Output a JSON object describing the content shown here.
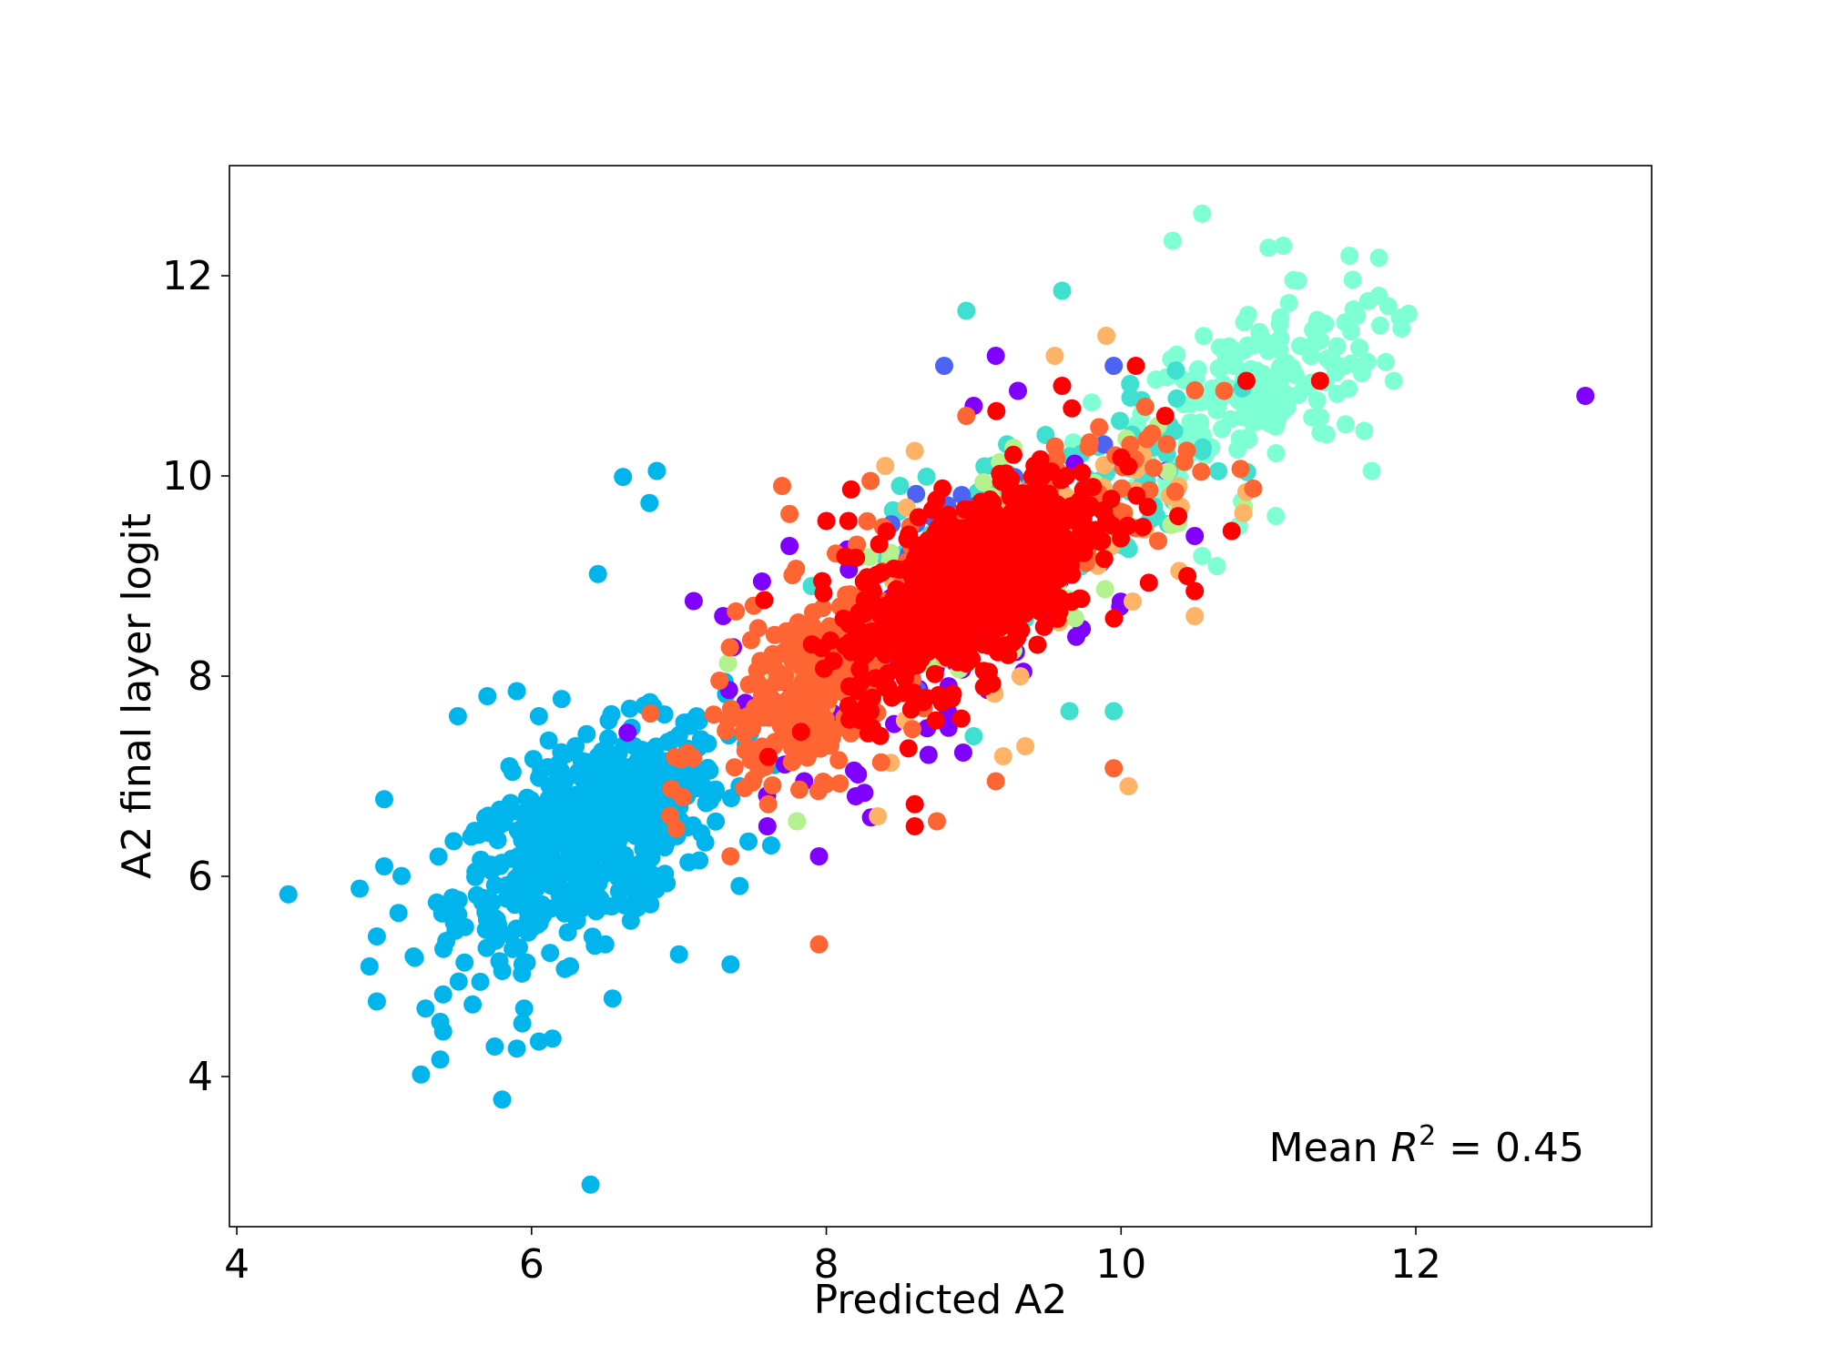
{
  "chart_data": {
    "type": "scatter",
    "title": "",
    "xlabel": "Predicted A2",
    "ylabel": "A2 final layer logit",
    "xlim": [
      3.95,
      13.6
    ],
    "ylim": [
      2.5,
      13.1
    ],
    "xticks": [
      4,
      6,
      8,
      10,
      12
    ],
    "yticks": [
      4,
      6,
      8,
      10,
      12
    ],
    "grid": false,
    "legend": "none",
    "annotation": {
      "prefix": "Mean ",
      "var": "R",
      "sup": "2",
      "suffix": " = 0.45",
      "placement": "bottom-right"
    },
    "series": [
      {
        "color": "#00b5eb",
        "clusters": [
          {
            "cx": 6.4,
            "cy": 6.4,
            "sx": 0.45,
            "sy": 0.55,
            "rho": 0.55,
            "n": 620
          }
        ],
        "points": [
          [
            4.35,
            5.82
          ],
          [
            4.9,
            5.1
          ],
          [
            4.95,
            4.75
          ],
          [
            4.95,
            5.4
          ],
          [
            5.0,
            6.1
          ],
          [
            5.0,
            6.77
          ],
          [
            5.2,
            5.2
          ],
          [
            5.25,
            4.02
          ],
          [
            5.28,
            4.68
          ],
          [
            5.38,
            4.17
          ],
          [
            5.4,
            4.45
          ],
          [
            5.4,
            4.82
          ],
          [
            5.5,
            7.6
          ],
          [
            5.6,
            4.72
          ],
          [
            5.75,
            4.3
          ],
          [
            5.8,
            3.77
          ],
          [
            5.9,
            4.28
          ],
          [
            5.95,
            4.68
          ],
          [
            6.05,
            4.35
          ],
          [
            6.4,
            2.92
          ],
          [
            6.45,
            9.02
          ],
          [
            6.55,
            4.78
          ],
          [
            6.62,
            9.99
          ],
          [
            6.8,
            9.73
          ],
          [
            6.85,
            10.05
          ],
          [
            6.5,
            5.32
          ],
          [
            7.0,
            5.22
          ],
          [
            7.35,
            5.12
          ],
          [
            5.7,
            7.8
          ],
          [
            5.9,
            7.85
          ],
          [
            5.85,
            7.1
          ],
          [
            6.05,
            7.6
          ]
        ]
      },
      {
        "color": "#7fffd4",
        "clusters": [
          {
            "cx": 10.9,
            "cy": 10.9,
            "sx": 0.42,
            "sy": 0.45,
            "rho": 0.5,
            "n": 170
          }
        ],
        "points": [
          [
            10.35,
            12.35
          ],
          [
            10.55,
            12.62
          ],
          [
            11.0,
            12.28
          ],
          [
            11.1,
            12.3
          ],
          [
            11.55,
            12.2
          ],
          [
            11.75,
            12.18
          ],
          [
            11.2,
            11.95
          ],
          [
            11.75,
            11.8
          ],
          [
            11.95,
            11.62
          ],
          [
            11.6,
            11.6
          ],
          [
            11.85,
            10.95
          ],
          [
            11.65,
            10.45
          ],
          [
            11.7,
            10.05
          ],
          [
            10.65,
            9.1
          ],
          [
            10.55,
            9.2
          ],
          [
            11.05,
            9.6
          ],
          [
            10.8,
            9.5
          ]
        ]
      },
      {
        "color": "#40e0d0",
        "clusters": [
          {
            "cx": 9.6,
            "cy": 9.7,
            "sx": 0.55,
            "sy": 0.55,
            "rho": 0.6,
            "n": 130
          }
        ],
        "points": [
          [
            8.95,
            11.65
          ],
          [
            9.6,
            11.85
          ],
          [
            9.95,
            7.65
          ],
          [
            8.5,
            9.9
          ],
          [
            7.9,
            8.9
          ],
          [
            9.0,
            7.4
          ],
          [
            9.65,
            7.65
          ]
        ]
      },
      {
        "color": "#8000ff",
        "clusters": [
          {
            "cx": 8.6,
            "cy": 8.4,
            "sx": 0.65,
            "sy": 0.65,
            "rho": 0.6,
            "n": 110
          }
        ],
        "points": [
          [
            13.15,
            10.8
          ],
          [
            9.15,
            11.2
          ],
          [
            7.1,
            8.75
          ],
          [
            7.3,
            8.6
          ],
          [
            7.85,
            6.95
          ],
          [
            7.95,
            6.2
          ],
          [
            7.6,
            6.5
          ],
          [
            8.2,
            6.8
          ],
          [
            7.75,
            9.3
          ],
          [
            9.0,
            10.7
          ],
          [
            9.3,
            10.85
          ],
          [
            10.5,
            9.4
          ]
        ]
      },
      {
        "color": "#4c63f4",
        "clusters": [
          {
            "cx": 9.3,
            "cy": 9.4,
            "sx": 0.5,
            "sy": 0.5,
            "rho": 0.6,
            "n": 40
          }
        ],
        "points": [
          [
            8.8,
            11.1
          ],
          [
            9.95,
            11.1
          ]
        ]
      },
      {
        "color": "#b3f28e",
        "clusters": [
          {
            "cx": 9.4,
            "cy": 9.3,
            "sx": 0.55,
            "sy": 0.55,
            "rho": 0.6,
            "n": 60
          }
        ],
        "points": [
          [
            7.8,
            6.55
          ],
          [
            7.65,
            8.0
          ],
          [
            10.25,
            10.5
          ]
        ]
      },
      {
        "color": "#ffb367",
        "clusters": [
          {
            "cx": 9.2,
            "cy": 9.0,
            "sx": 0.6,
            "sy": 0.6,
            "rho": 0.6,
            "n": 80
          }
        ],
        "points": [
          [
            10.05,
            6.9
          ],
          [
            8.35,
            6.6
          ],
          [
            9.35,
            7.3
          ],
          [
            9.2,
            7.2
          ],
          [
            8.6,
            10.25
          ],
          [
            8.4,
            10.1
          ],
          [
            9.9,
            11.4
          ],
          [
            9.55,
            11.2
          ],
          [
            10.5,
            8.6
          ]
        ]
      },
      {
        "color": "#ff6433",
        "clusters": [
          {
            "cx": 7.95,
            "cy": 7.95,
            "sx": 0.38,
            "sy": 0.55,
            "rho": 0.55,
            "n": 300
          },
          {
            "cx": 9.5,
            "cy": 9.45,
            "sx": 0.5,
            "sy": 0.5,
            "rho": 0.6,
            "n": 80
          }
        ],
        "points": [
          [
            7.95,
            5.32
          ],
          [
            7.7,
            9.9
          ],
          [
            7.75,
            9.62
          ],
          [
            8.3,
            9.95
          ],
          [
            7.35,
            6.2
          ],
          [
            9.95,
            7.08
          ],
          [
            9.15,
            6.95
          ],
          [
            10.7,
            10.85
          ],
          [
            8.95,
            10.6
          ],
          [
            8.75,
            6.55
          ]
        ]
      },
      {
        "color": "#ff0000",
        "clusters": [
          {
            "cx": 9.0,
            "cy": 8.95,
            "sx": 0.42,
            "sy": 0.55,
            "rho": 0.6,
            "n": 750
          }
        ],
        "points": [
          [
            11.35,
            10.95
          ],
          [
            10.85,
            10.95
          ],
          [
            10.75,
            9.45
          ],
          [
            10.5,
            8.85
          ],
          [
            10.45,
            9.0
          ],
          [
            8.6,
            6.5
          ],
          [
            8.6,
            6.72
          ],
          [
            8.3,
            7.65
          ],
          [
            8.0,
            9.55
          ],
          [
            8.15,
            9.55
          ],
          [
            10.1,
            11.1
          ],
          [
            10.3,
            10.6
          ],
          [
            9.6,
            10.9
          ]
        ]
      }
    ]
  }
}
